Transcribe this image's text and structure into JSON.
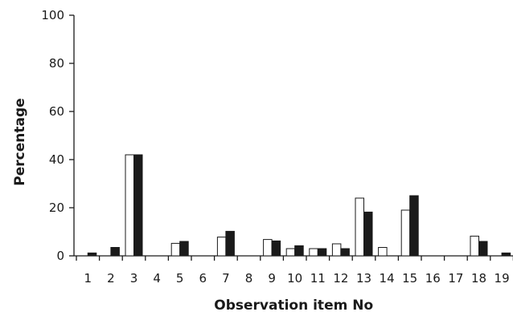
{
  "chart_data": {
    "type": "bar",
    "title": "",
    "xlabel": "Observation item No",
    "ylabel": "Percentage",
    "ylim": [
      0,
      100
    ],
    "yticks": [
      0,
      20,
      40,
      60,
      80,
      100
    ],
    "grid": false,
    "legend": "none",
    "categories": [
      "1",
      "2",
      "3",
      "4",
      "5",
      "6",
      "7",
      "8",
      "9",
      "10",
      "11",
      "12",
      "13",
      "14",
      "15",
      "16",
      "17",
      "18",
      "19"
    ],
    "series": [
      {
        "fill": "#ffffff",
        "stroke": "#1a1a1a",
        "values": [
          0,
          0,
          42,
          0,
          5.2,
          0,
          7.8,
          0,
          6.8,
          3,
          3,
          5,
          24,
          3.5,
          19,
          0,
          0,
          8.2,
          0
        ]
      },
      {
        "fill": "#1a1a1a",
        "stroke": "#1a1a1a",
        "values": [
          1.2,
          3.5,
          42,
          0,
          6,
          0,
          10.2,
          0,
          6.2,
          4.2,
          3,
          3,
          18.2,
          0,
          25,
          0,
          0,
          6,
          1.2
        ]
      }
    ]
  }
}
